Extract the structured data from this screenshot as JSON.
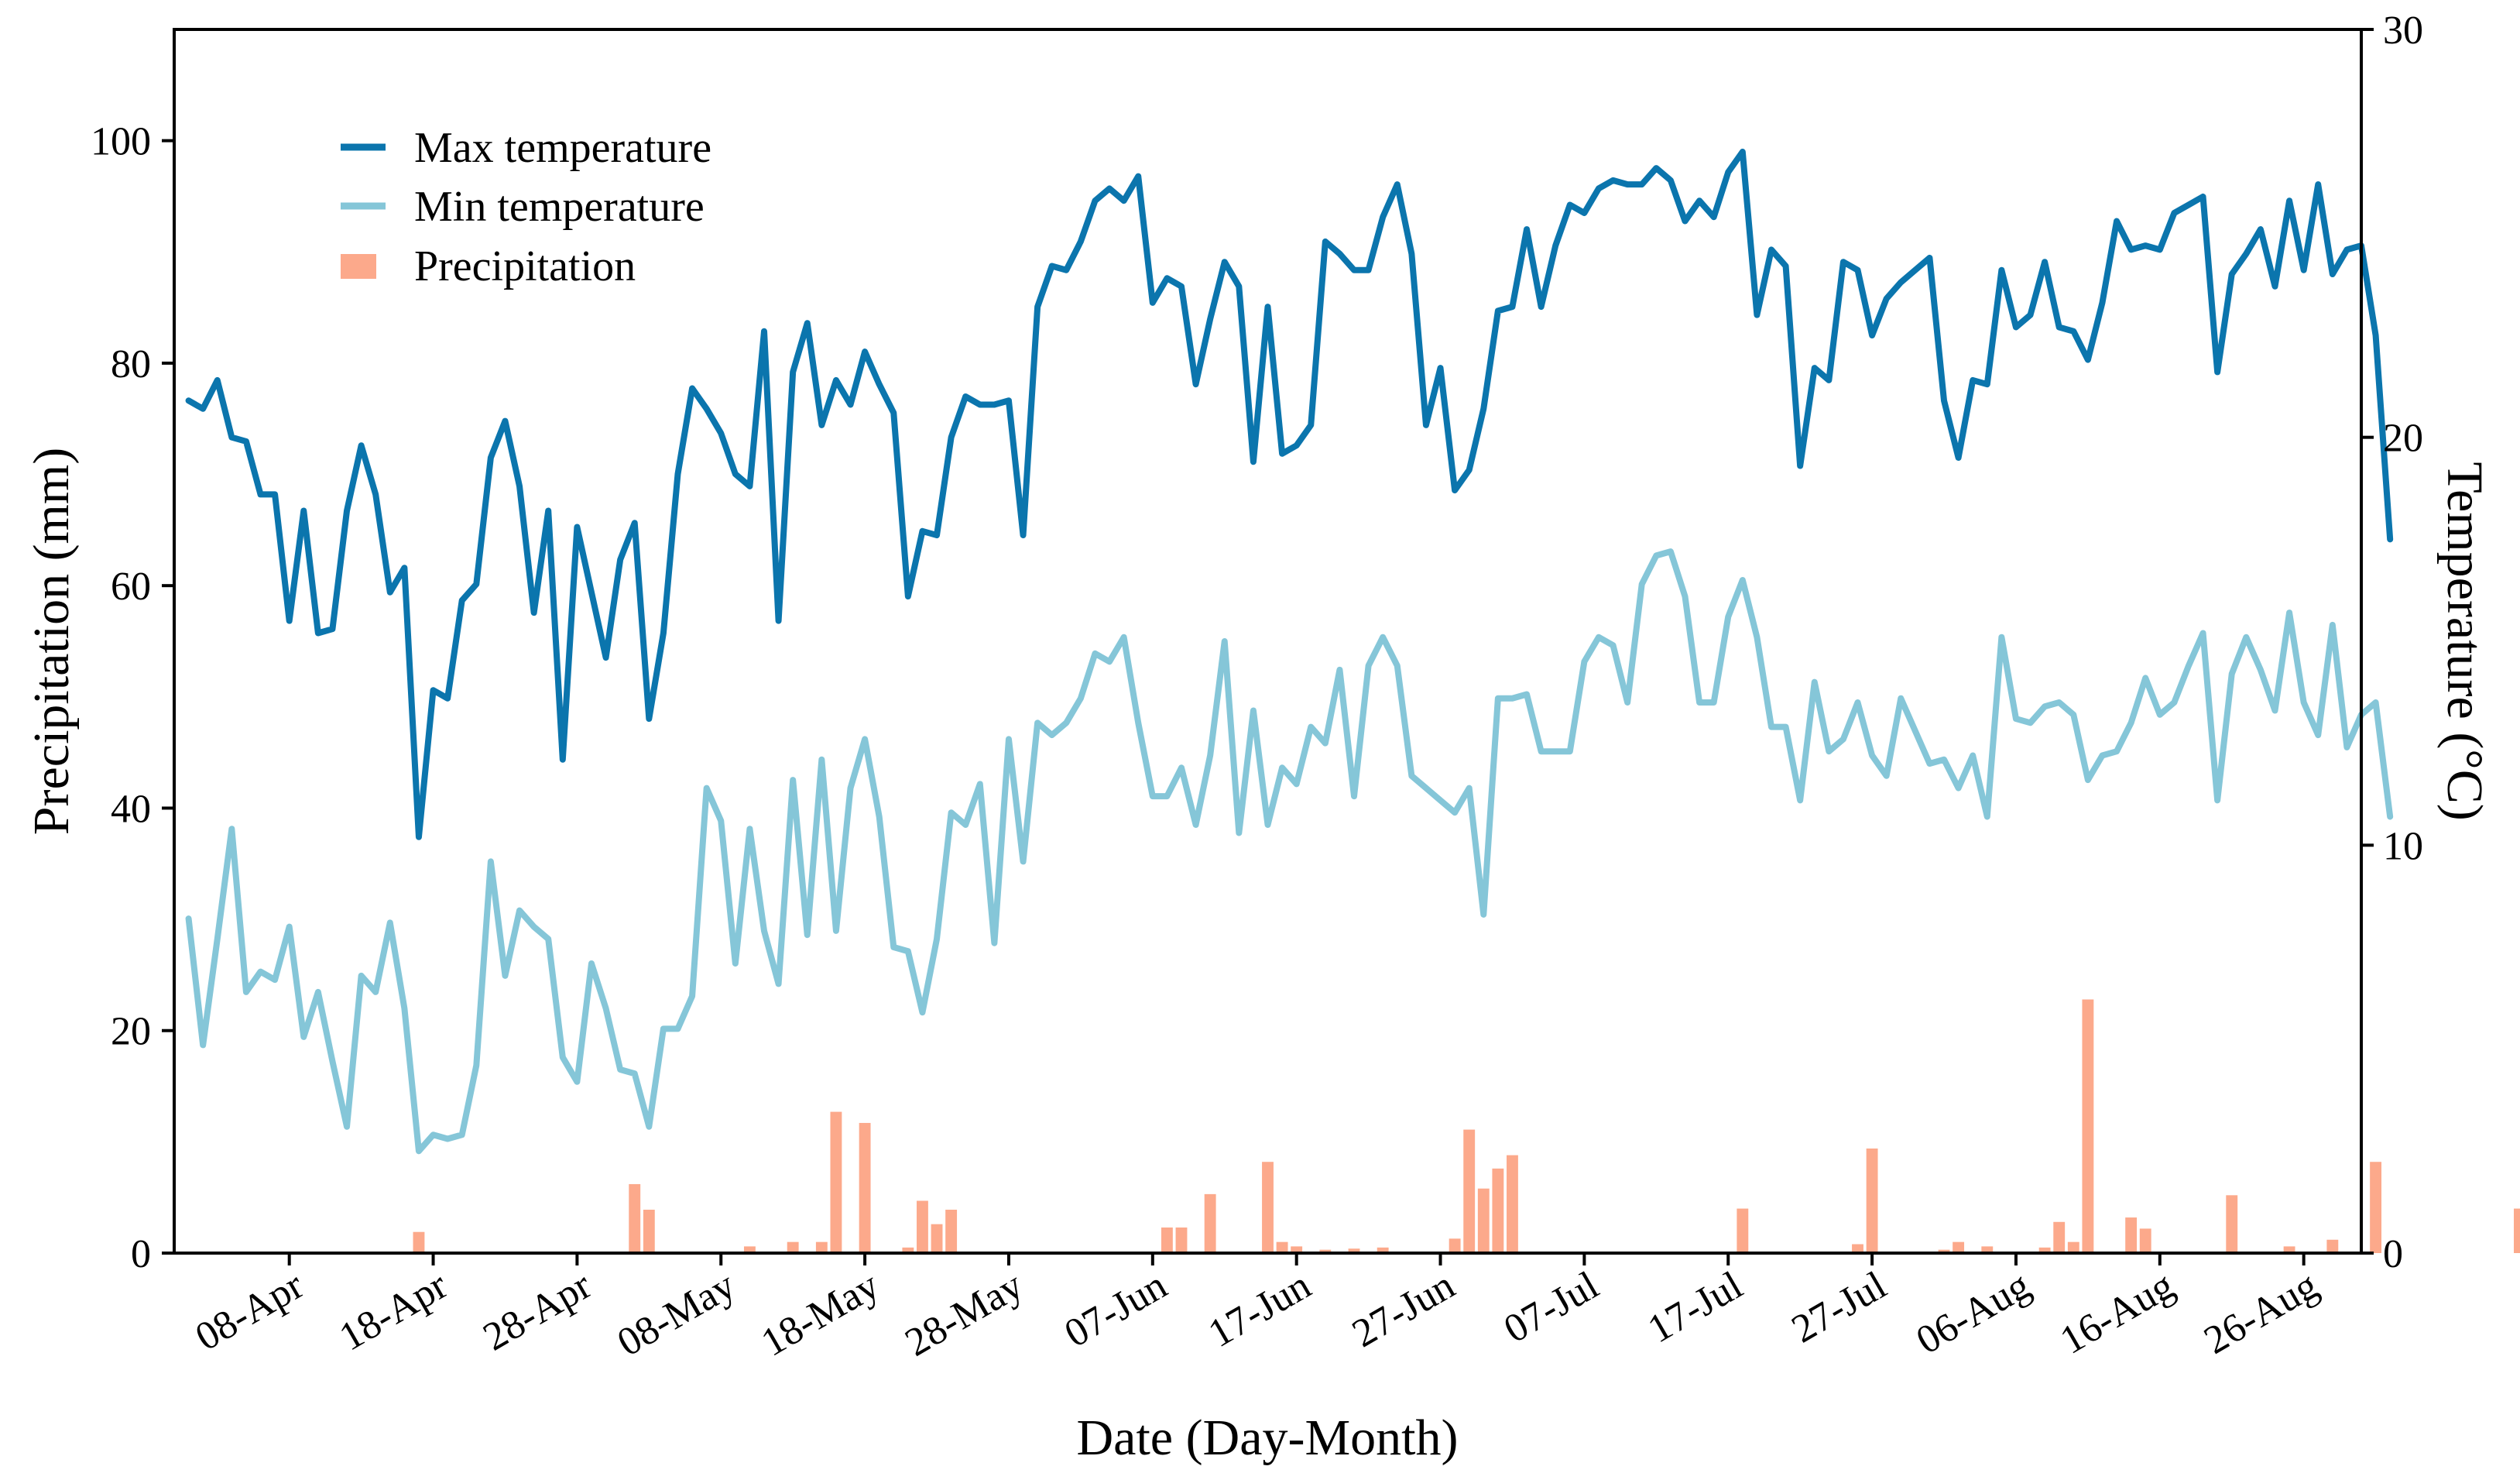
{
  "colors": {
    "max_temperature": "#0b75ad",
    "min_temperature": "#85c6d8",
    "precipitation": "#fca98b",
    "axis": "#000000"
  },
  "legend": {
    "position": "top-left",
    "items": [
      {
        "label": "Max temperature",
        "symbol": "line",
        "color": "#0b75ad"
      },
      {
        "label": "Min temperature",
        "symbol": "line",
        "color": "#85c6d8"
      },
      {
        "label": "Precipitation",
        "symbol": "bar",
        "color": "#fca98b"
      }
    ]
  },
  "chart_data": {
    "type": "bar+line",
    "title": "",
    "xlabel": "Date (Day-Month)",
    "ylabel_left": "Precipitation (mm)",
    "ylabel_right": "Temperature  (°C)",
    "ylim_left": [
      0,
      110
    ],
    "ylim_right": [
      0,
      30
    ],
    "yticks_left": [
      0,
      20,
      40,
      60,
      80,
      100
    ],
    "yticks_right": [
      0,
      10,
      20,
      30
    ],
    "grid": false,
    "x_range_dates": [
      "2024-03-31",
      "2024-08-30"
    ],
    "xticks": [
      {
        "date": "2024-04-08",
        "label": "08-Apr"
      },
      {
        "date": "2024-04-18",
        "label": "18-Apr"
      },
      {
        "date": "2024-04-28",
        "label": "28-Apr"
      },
      {
        "date": "2024-05-08",
        "label": "08-May"
      },
      {
        "date": "2024-05-18",
        "label": "18-May"
      },
      {
        "date": "2024-05-28",
        "label": "28-May"
      },
      {
        "date": "2024-06-07",
        "label": "07-Jun"
      },
      {
        "date": "2024-06-17",
        "label": "17-Jun"
      },
      {
        "date": "2024-06-27",
        "label": "27-Jun"
      },
      {
        "date": "2024-07-07",
        "label": "07-Jul"
      },
      {
        "date": "2024-07-17",
        "label": "17-Jul"
      },
      {
        "date": "2024-07-27",
        "label": "27-Jul"
      },
      {
        "date": "2024-08-06",
        "label": "06-Aug"
      },
      {
        "date": "2024-08-16",
        "label": "16-Aug"
      },
      {
        "date": "2024-08-26",
        "label": "26-Aug"
      }
    ],
    "series": [
      {
        "name": "Max temperature",
        "axis": "right",
        "kind": "line",
        "start_date": "2024-04-01",
        "values": [
          20.9,
          20.7,
          21.4,
          20.0,
          19.9,
          18.6,
          18.6,
          15.5,
          18.2,
          15.2,
          15.3,
          18.2,
          19.8,
          18.6,
          16.2,
          16.8,
          10.2,
          13.8,
          13.6,
          16.0,
          16.4,
          19.5,
          20.4,
          18.8,
          15.7,
          18.2,
          12.1,
          17.8,
          16.2,
          14.6,
          17.0,
          17.9,
          13.1,
          15.2,
          19.1,
          21.2,
          20.7,
          20.1,
          19.1,
          18.8,
          22.6,
          15.5,
          21.6,
          22.8,
          20.3,
          21.4,
          20.8,
          22.1,
          21.3,
          20.6,
          16.1,
          17.7,
          17.6,
          20.0,
          21.0,
          20.8,
          20.8,
          20.9,
          17.6,
          23.2,
          24.2,
          24.1,
          24.8,
          25.8,
          26.1,
          25.8,
          26.4,
          23.3,
          23.9,
          23.7,
          21.3,
          22.9,
          24.3,
          23.7,
          19.4,
          23.2,
          19.6,
          19.8,
          20.3,
          24.8,
          24.5,
          24.1,
          24.1,
          25.4,
          26.2,
          24.5,
          20.3,
          21.7,
          18.7,
          19.2,
          20.7,
          23.1,
          23.2,
          25.1,
          23.2,
          24.7,
          25.7,
          25.5,
          26.1,
          26.3,
          26.2,
          26.2,
          26.6,
          26.3,
          25.3,
          25.8,
          25.4,
          26.5,
          27.0,
          23.0,
          24.6,
          24.2,
          19.3,
          21.7,
          21.4,
          24.3,
          24.1,
          22.5,
          23.4,
          23.8,
          24.1,
          24.4,
          20.9,
          19.5,
          21.4,
          21.3,
          24.1,
          22.7,
          23.0,
          24.3,
          22.7,
          22.6,
          21.9,
          23.3,
          25.3,
          24.6,
          24.7,
          24.6,
          25.5,
          25.7,
          25.9,
          21.6,
          24.0,
          24.5,
          25.1,
          23.7,
          25.8,
          24.1,
          26.2,
          24.0,
          24.6,
          24.7,
          22.5,
          17.5
        ]
      },
      {
        "name": "Min temperature",
        "axis": "right",
        "kind": "line",
        "start_date": "2024-04-01",
        "values": [
          8.2,
          5.1,
          7.7,
          10.4,
          6.4,
          6.9,
          6.7,
          8.0,
          5.3,
          6.4,
          4.7,
          3.1,
          6.8,
          6.4,
          8.1,
          6.0,
          2.5,
          2.9,
          2.8,
          2.9,
          4.6,
          9.6,
          6.8,
          8.4,
          8.0,
          7.7,
          4.8,
          4.2,
          7.1,
          6.0,
          4.5,
          4.4,
          3.1,
          5.5,
          5.5,
          6.3,
          11.4,
          10.6,
          7.1,
          10.4,
          7.9,
          6.6,
          11.6,
          7.8,
          12.1,
          7.9,
          11.4,
          12.6,
          10.7,
          7.5,
          7.4,
          5.9,
          7.7,
          10.8,
          10.5,
          11.5,
          7.6,
          12.6,
          9.6,
          13.0,
          12.7,
          13.0,
          13.6,
          14.7,
          14.5,
          15.1,
          13.0,
          11.2,
          11.2,
          11.9,
          10.5,
          12.2,
          15.0,
          10.3,
          13.3,
          10.5,
          11.9,
          11.5,
          12.9,
          12.5,
          14.3,
          11.2,
          14.4,
          15.1,
          14.4,
          11.7,
          11.4,
          11.1,
          10.8,
          11.4,
          8.3,
          13.6,
          13.6,
          13.7,
          12.3,
          12.3,
          12.3,
          14.5,
          15.1,
          14.9,
          13.5,
          16.4,
          17.1,
          17.2,
          16.1,
          13.5,
          13.5,
          15.6,
          16.5,
          15.1,
          12.9,
          12.9,
          11.1,
          14.0,
          12.3,
          12.6,
          13.5,
          12.2,
          11.7,
          13.6,
          12.8,
          12.0,
          12.1,
          11.4,
          12.2,
          10.7,
          15.1,
          13.1,
          13.0,
          13.4,
          13.5,
          13.2,
          11.6,
          12.2,
          12.3,
          13.0,
          14.1,
          13.2,
          13.5,
          14.4,
          15.2,
          11.1,
          14.2,
          15.1,
          14.3,
          13.3,
          15.7,
          13.5,
          12.7,
          15.4,
          12.4,
          13.2,
          13.5,
          10.7
        ]
      },
      {
        "name": "Precipitation",
        "axis": "left",
        "kind": "bar",
        "start_date": "2024-04-01",
        "values": [
          0,
          0,
          0,
          0,
          0,
          0,
          0,
          0,
          0,
          0,
          0,
          0,
          0,
          0,
          0,
          0,
          1.9,
          0,
          0,
          0,
          0,
          0,
          0,
          0,
          0,
          0,
          0,
          0,
          0,
          0,
          0,
          6.2,
          3.9,
          0,
          0,
          0,
          0,
          0,
          0,
          0.6,
          0,
          0,
          1.0,
          0,
          1.0,
          12.7,
          0,
          11.7,
          0,
          0,
          0.5,
          4.7,
          2.6,
          3.9,
          0,
          0,
          0,
          0,
          0,
          0,
          0,
          0,
          0,
          0,
          0,
          0,
          0,
          0,
          2.3,
          2.3,
          0,
          5.3,
          0,
          0,
          0,
          8.2,
          1.0,
          0.6,
          0,
          0.3,
          0,
          0.4,
          0,
          0.5,
          0,
          0,
          0,
          0,
          1.3,
          11.1,
          5.8,
          7.6,
          8.8,
          0,
          0,
          0,
          0,
          0,
          0,
          0,
          0,
          0,
          0,
          0,
          0,
          0,
          0,
          0,
          4.0,
          0,
          0,
          0,
          0,
          0,
          0,
          0,
          0.8,
          9.4,
          0,
          0,
          0,
          0,
          0.3,
          1.0,
          0,
          0.6,
          0,
          0,
          0,
          0.5,
          2.8,
          1.0,
          22.8,
          0,
          0,
          3.2,
          2.2,
          0,
          0,
          0,
          0,
          0,
          5.2,
          0,
          0,
          0,
          0.6,
          0,
          0,
          1.2,
          0,
          0,
          8.2,
          0,
          0,
          0,
          0,
          0,
          0,
          0,
          0,
          0,
          4.0,
          0
        ]
      }
    ]
  }
}
